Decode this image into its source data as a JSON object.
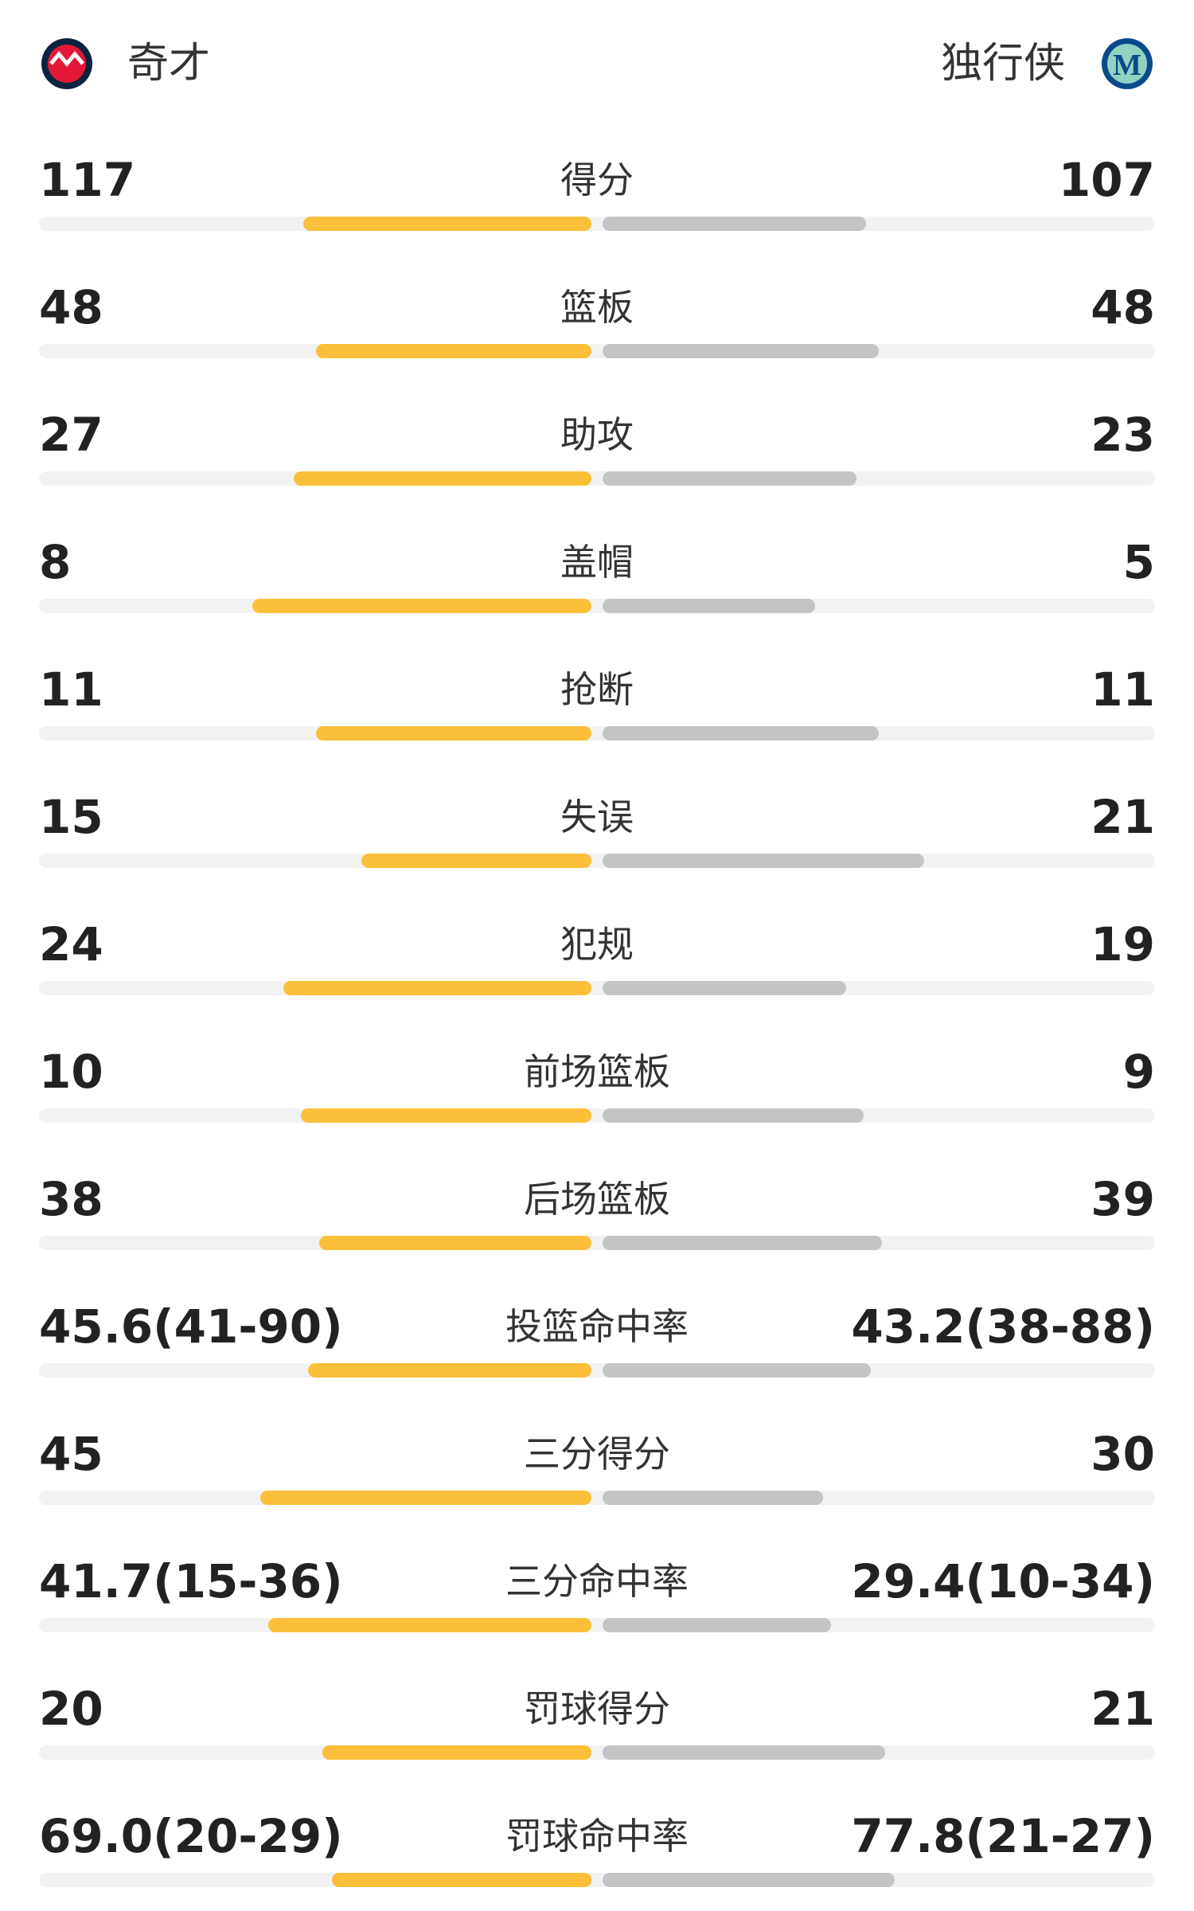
{
  "header": {
    "home": {
      "name": "奇才"
    },
    "away": {
      "name": "独行侠"
    }
  },
  "stats": [
    {
      "label": "得分",
      "home": 117,
      "away": 107
    },
    {
      "label": "篮板",
      "home": 48,
      "away": 48
    },
    {
      "label": "助攻",
      "home": 27,
      "away": 23
    },
    {
      "label": "盖帽",
      "home": 8,
      "away": 5
    },
    {
      "label": "抢断",
      "home": 11,
      "away": 11
    },
    {
      "label": "失误",
      "home": 15,
      "away": 21
    },
    {
      "label": "犯规",
      "home": 24,
      "away": 19
    },
    {
      "label": "前场篮板",
      "home": 10,
      "away": 9
    },
    {
      "label": "后场篮板",
      "home": 38,
      "away": 39
    },
    {
      "label": "投篮命中率",
      "home": {
        "value": 45.6,
        "label": "45.6(41-90)"
      },
      "away": {
        "value": 43.2,
        "label": "43.2(38-88)"
      }
    },
    {
      "label": "三分得分",
      "home": 45,
      "away": 30
    },
    {
      "label": "三分命中率",
      "home": {
        "value": 41.7,
        "label": "41.7(15-36)"
      },
      "away": {
        "value": 29.4,
        "label": "29.4(10-34)"
      }
    },
    {
      "label": "罚球得分",
      "home": 20,
      "away": 21
    },
    {
      "label": "罚球命中率",
      "home": {
        "value": 69.0,
        "label": "69.0(20-29)"
      },
      "away": {
        "value": 77.8,
        "label": "77.8(21-27)"
      }
    }
  ]
}
